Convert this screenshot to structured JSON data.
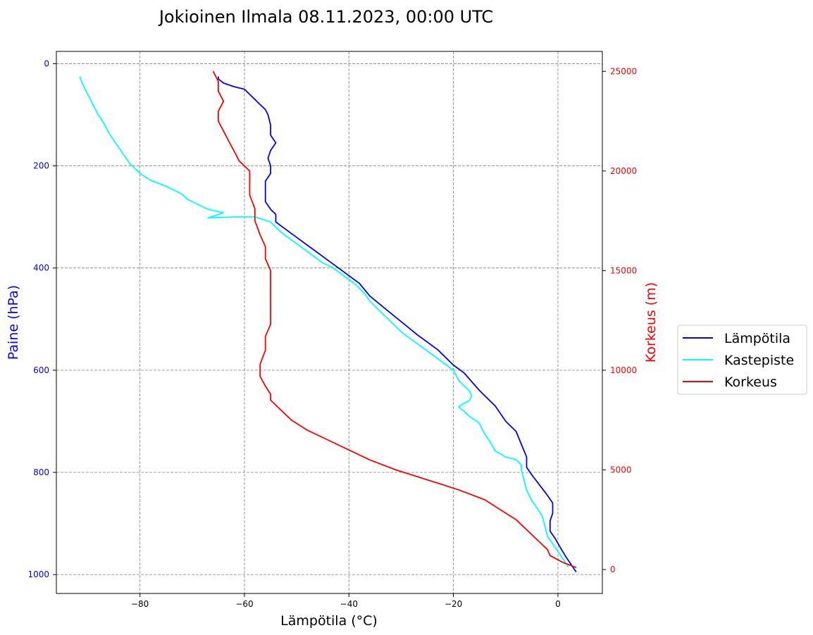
{
  "chart_data": {
    "type": "line",
    "title": "Jokioinen Ilmala 08.11.2023, 00:00 UTC",
    "xlabel": "Lämpötila (°C)",
    "ylabel_left": "Paine (hPa)",
    "ylabel_right": "Korkeus (m)",
    "xlim": [
      -96,
      8.5
    ],
    "ylim_left": [
      1037,
      -24
    ],
    "ylim_right": [
      -1200,
      26000
    ],
    "x_ticks": [
      "−80",
      "−60",
      "−40",
      "−20",
      "0"
    ],
    "y_left_ticks": [
      "0",
      "200",
      "400",
      "600",
      "800",
      "1000"
    ],
    "y_right_ticks": [
      "0",
      "5000",
      "10000",
      "15000",
      "20000",
      "25000"
    ],
    "grid": true,
    "legend_position": "outside-right",
    "colors": {
      "temperature": "#0000ff",
      "dewpoint": "#00ffff",
      "height": "#ff0000",
      "left_axis": "#0000ff",
      "right_axis": "#ff0000",
      "grid": "#808080"
    },
    "series": [
      {
        "name": "Lämpötila",
        "axis": "pressure",
        "points": [
          [
            3.5,
            995
          ],
          [
            2.5,
            980
          ],
          [
            1.5,
            965
          ],
          [
            0.5,
            948
          ],
          [
            -0.5,
            930
          ],
          [
            -1.5,
            915
          ],
          [
            -1.5,
            895
          ],
          [
            -1,
            880
          ],
          [
            -1,
            860
          ],
          [
            -2,
            845
          ],
          [
            -3.5,
            825
          ],
          [
            -5,
            805
          ],
          [
            -6,
            790
          ],
          [
            -6,
            770
          ],
          [
            -7,
            745
          ],
          [
            -8,
            720
          ],
          [
            -10,
            700
          ],
          [
            -12,
            670
          ],
          [
            -15,
            640
          ],
          [
            -18,
            605
          ],
          [
            -20,
            590
          ],
          [
            -23,
            560
          ],
          [
            -27,
            530
          ],
          [
            -30,
            505
          ],
          [
            -33,
            480
          ],
          [
            -36,
            455
          ],
          [
            -38,
            430
          ],
          [
            -40,
            415
          ],
          [
            -42,
            400
          ],
          [
            -44,
            385
          ],
          [
            -46,
            370
          ],
          [
            -48,
            355
          ],
          [
            -50,
            340
          ],
          [
            -52,
            325
          ],
          [
            -54,
            310
          ],
          [
            -54,
            295
          ],
          [
            -55,
            285
          ],
          [
            -56,
            270
          ],
          [
            -56,
            250
          ],
          [
            -56,
            230
          ],
          [
            -55,
            215
          ],
          [
            -55,
            200
          ],
          [
            -55.5,
            185
          ],
          [
            -55,
            170
          ],
          [
            -54,
            155
          ],
          [
            -55,
            140
          ],
          [
            -55,
            120
          ],
          [
            -55.5,
            100
          ],
          [
            -56,
            90
          ],
          [
            -57,
            80
          ],
          [
            -58,
            70
          ],
          [
            -59,
            60
          ],
          [
            -60,
            50
          ],
          [
            -62,
            45
          ],
          [
            -64,
            38
          ],
          [
            -65,
            30
          ],
          [
            -65,
            25
          ]
        ]
      },
      {
        "name": "Kastepiste",
        "axis": "pressure",
        "points": [
          [
            2,
            985
          ],
          [
            1,
            970
          ],
          [
            0,
            955
          ],
          [
            -1,
            940
          ],
          [
            -2,
            925
          ],
          [
            -2.5,
            905
          ],
          [
            -3,
            885
          ],
          [
            -4,
            870
          ],
          [
            -5,
            855
          ],
          [
            -6,
            835
          ],
          [
            -6.5,
            815
          ],
          [
            -7,
            795
          ],
          [
            -7,
            785
          ],
          [
            -8,
            775
          ],
          [
            -10,
            770
          ],
          [
            -12,
            758
          ],
          [
            -13,
            740
          ],
          [
            -14,
            725
          ],
          [
            -15,
            705
          ],
          [
            -15.5,
            700
          ],
          [
            -17,
            690
          ],
          [
            -18,
            680
          ],
          [
            -19,
            672
          ],
          [
            -18,
            665
          ],
          [
            -17,
            660
          ],
          [
            -16.5,
            650
          ],
          [
            -17,
            640
          ],
          [
            -18,
            630
          ],
          [
            -19,
            620
          ],
          [
            -20,
            600
          ],
          [
            -22,
            585
          ],
          [
            -24,
            570
          ],
          [
            -26,
            555
          ],
          [
            -28,
            540
          ],
          [
            -30,
            525
          ],
          [
            -32,
            505
          ],
          [
            -34,
            485
          ],
          [
            -36,
            465
          ],
          [
            -37,
            450
          ],
          [
            -39,
            430
          ],
          [
            -41,
            415
          ],
          [
            -43,
            400
          ],
          [
            -45,
            390
          ],
          [
            -47,
            375
          ],
          [
            -49,
            360
          ],
          [
            -51,
            345
          ],
          [
            -53,
            330
          ],
          [
            -55,
            310
          ],
          [
            -58,
            300
          ],
          [
            -62,
            300
          ],
          [
            -67,
            302
          ],
          [
            -64,
            292
          ],
          [
            -67,
            285
          ],
          [
            -69,
            275
          ],
          [
            -71,
            265
          ],
          [
            -72,
            255
          ],
          [
            -75,
            240
          ],
          [
            -78,
            228
          ],
          [
            -80,
            215
          ],
          [
            -82,
            195
          ],
          [
            -83,
            180
          ],
          [
            -84,
            165
          ],
          [
            -85,
            150
          ],
          [
            -86,
            135
          ],
          [
            -87,
            115
          ],
          [
            -88,
            100
          ],
          [
            -89,
            80
          ],
          [
            -90,
            60
          ],
          [
            -91,
            40
          ],
          [
            -91.5,
            25
          ]
        ]
      },
      {
        "name": "Korkeus",
        "axis": "height",
        "points": [
          [
            3.5,
            100
          ],
          [
            1,
            350
          ],
          [
            -1.5,
            700
          ],
          [
            -2,
            1000
          ],
          [
            -4,
            1500
          ],
          [
            -6,
            2000
          ],
          [
            -8,
            2500
          ],
          [
            -11,
            3000
          ],
          [
            -14,
            3500
          ],
          [
            -19,
            4000
          ],
          [
            -25,
            4500
          ],
          [
            -31,
            5000
          ],
          [
            -36,
            5500
          ],
          [
            -40,
            6000
          ],
          [
            -44,
            6500
          ],
          [
            -48,
            7000
          ],
          [
            -51,
            7500
          ],
          [
            -53,
            8000
          ],
          [
            -55,
            8500
          ],
          [
            -55,
            8800
          ],
          [
            -56,
            9200
          ],
          [
            -57,
            9700
          ],
          [
            -57,
            10300
          ],
          [
            -56,
            11000
          ],
          [
            -56,
            11700
          ],
          [
            -55,
            12300
          ],
          [
            -55,
            13000
          ],
          [
            -55,
            13700
          ],
          [
            -55,
            14300
          ],
          [
            -55,
            15000
          ],
          [
            -56,
            15600
          ],
          [
            -56,
            16200
          ],
          [
            -57,
            16800
          ],
          [
            -58,
            17500
          ],
          [
            -58,
            18100
          ],
          [
            -59,
            18800
          ],
          [
            -59,
            19400
          ],
          [
            -59,
            20000
          ],
          [
            -61,
            20500
          ],
          [
            -62,
            21000
          ],
          [
            -63,
            21500
          ],
          [
            -64,
            22000
          ],
          [
            -65,
            22500
          ],
          [
            -65,
            23000
          ],
          [
            -64,
            23500
          ],
          [
            -65,
            24000
          ],
          [
            -65,
            24500
          ],
          [
            -66,
            25000
          ]
        ]
      }
    ]
  }
}
